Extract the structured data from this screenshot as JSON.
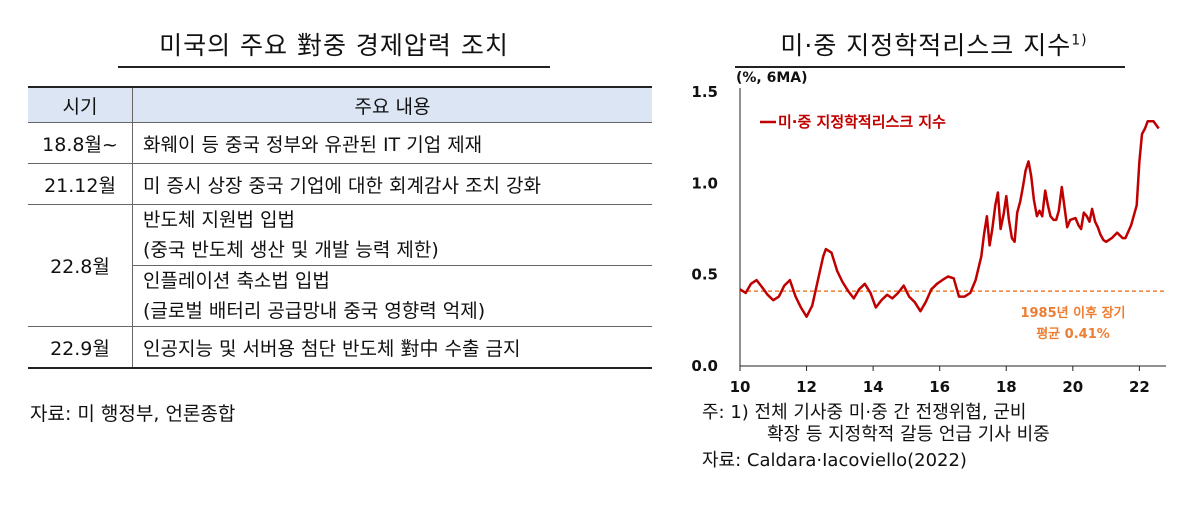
{
  "left": {
    "title": "미국의 주요 對중 경제압력 조치",
    "table": {
      "headers": [
        "시기",
        "주요 내용"
      ],
      "rows": [
        {
          "period": "18.8월~",
          "contents": [
            "화웨이 등 중국 정부와 유관된 IT 기업 제재"
          ]
        },
        {
          "period": "21.12월",
          "contents": [
            "미 증시 상장 중국 기업에 대한 회계감사 조치 강화"
          ]
        },
        {
          "period": "22.8월",
          "contents": [
            "반도체 지원법 입법",
            "(중국 반도체 생산 및 개발 능력 제한)",
            "인플레이션 축소법 입법",
            "(글로벌 배터리 공급망내 중국 영향력 억제)"
          ]
        },
        {
          "period": "22.9월",
          "contents": [
            "인공지능 및 서버용 첨단 반도체 對中 수출 금지"
          ]
        }
      ]
    },
    "source": "자료: 미 행정부, 언론종합"
  },
  "right": {
    "title": "미·중 지정학적리스크 지수",
    "title_sup": "1)",
    "note_line1": "주: 1) 전체 기사중 미·중 간 전쟁위협, 군비",
    "note_line2": "확장 등 지정학적 갈등 언급 기사 비중",
    "source": "자료: Caldara·Iacoviello(2022)"
  },
  "chart_data": {
    "type": "line",
    "unit_label": "(%, 6MA)",
    "x_ticks": [
      "10",
      "12",
      "14",
      "16",
      "18",
      "20",
      "22"
    ],
    "y_ticks": [
      "1.5",
      "1.0",
      "0.5",
      "0.0"
    ],
    "xlim": [
      2010,
      2022.8
    ],
    "ylim": [
      0,
      1.5
    ],
    "grid": false,
    "legend_position": "top-left",
    "series": [
      {
        "name": "미·중 지정학적리스크 지수",
        "color": "#c00000",
        "points": [
          [
            2010.0,
            0.42
          ],
          [
            2010.17,
            0.4
          ],
          [
            2010.33,
            0.45
          ],
          [
            2010.5,
            0.47
          ],
          [
            2010.67,
            0.43
          ],
          [
            2010.83,
            0.39
          ],
          [
            2011.0,
            0.36
          ],
          [
            2011.17,
            0.38
          ],
          [
            2011.33,
            0.44
          ],
          [
            2011.5,
            0.47
          ],
          [
            2011.67,
            0.38
          ],
          [
            2011.83,
            0.32
          ],
          [
            2012.0,
            0.27
          ],
          [
            2012.17,
            0.33
          ],
          [
            2012.33,
            0.46
          ],
          [
            2012.5,
            0.6
          ],
          [
            2012.58,
            0.64
          ],
          [
            2012.75,
            0.62
          ],
          [
            2012.92,
            0.52
          ],
          [
            2013.08,
            0.46
          ],
          [
            2013.25,
            0.41
          ],
          [
            2013.42,
            0.37
          ],
          [
            2013.58,
            0.42
          ],
          [
            2013.75,
            0.45
          ],
          [
            2013.92,
            0.4
          ],
          [
            2014.08,
            0.32
          ],
          [
            2014.25,
            0.36
          ],
          [
            2014.42,
            0.39
          ],
          [
            2014.58,
            0.37
          ],
          [
            2014.75,
            0.4
          ],
          [
            2014.92,
            0.44
          ],
          [
            2015.08,
            0.38
          ],
          [
            2015.25,
            0.35
          ],
          [
            2015.42,
            0.3
          ],
          [
            2015.58,
            0.35
          ],
          [
            2015.75,
            0.42
          ],
          [
            2015.92,
            0.45
          ],
          [
            2016.08,
            0.47
          ],
          [
            2016.25,
            0.49
          ],
          [
            2016.42,
            0.48
          ],
          [
            2016.58,
            0.38
          ],
          [
            2016.75,
            0.38
          ],
          [
            2016.92,
            0.4
          ],
          [
            2017.08,
            0.47
          ],
          [
            2017.25,
            0.6
          ],
          [
            2017.33,
            0.72
          ],
          [
            2017.42,
            0.82
          ],
          [
            2017.5,
            0.66
          ],
          [
            2017.58,
            0.75
          ],
          [
            2017.67,
            0.88
          ],
          [
            2017.75,
            0.95
          ],
          [
            2017.83,
            0.75
          ],
          [
            2017.92,
            0.83
          ],
          [
            2018.0,
            0.93
          ],
          [
            2018.08,
            0.8
          ],
          [
            2018.17,
            0.7
          ],
          [
            2018.25,
            0.68
          ],
          [
            2018.33,
            0.84
          ],
          [
            2018.42,
            0.9
          ],
          [
            2018.5,
            0.98
          ],
          [
            2018.58,
            1.07
          ],
          [
            2018.67,
            1.12
          ],
          [
            2018.75,
            1.04
          ],
          [
            2018.83,
            0.91
          ],
          [
            2018.92,
            0.82
          ],
          [
            2019.0,
            0.85
          ],
          [
            2019.08,
            0.82
          ],
          [
            2019.17,
            0.96
          ],
          [
            2019.25,
            0.88
          ],
          [
            2019.33,
            0.82
          ],
          [
            2019.42,
            0.8
          ],
          [
            2019.5,
            0.8
          ],
          [
            2019.58,
            0.85
          ],
          [
            2019.67,
            0.98
          ],
          [
            2019.75,
            0.87
          ],
          [
            2019.83,
            0.76
          ],
          [
            2019.92,
            0.8
          ],
          [
            2020.08,
            0.81
          ],
          [
            2020.17,
            0.77
          ],
          [
            2020.25,
            0.75
          ],
          [
            2020.33,
            0.84
          ],
          [
            2020.42,
            0.82
          ],
          [
            2020.5,
            0.79
          ],
          [
            2020.58,
            0.86
          ],
          [
            2020.67,
            0.79
          ],
          [
            2020.75,
            0.76
          ],
          [
            2020.83,
            0.72
          ],
          [
            2020.92,
            0.69
          ],
          [
            2021.0,
            0.68
          ],
          [
            2021.17,
            0.7
          ],
          [
            2021.33,
            0.73
          ],
          [
            2021.5,
            0.7
          ],
          [
            2021.58,
            0.7
          ],
          [
            2021.75,
            0.77
          ],
          [
            2021.92,
            0.88
          ],
          [
            2022.0,
            1.12
          ],
          [
            2022.08,
            1.27
          ],
          [
            2022.17,
            1.3
          ],
          [
            2022.25,
            1.34
          ],
          [
            2022.42,
            1.34
          ],
          [
            2022.58,
            1.3
          ]
        ]
      }
    ],
    "reference_line": {
      "value": 0.41,
      "color": "#ed7d31",
      "label_line1": "1985년 이후 장기",
      "label_line2": "평균 0.41%"
    }
  }
}
